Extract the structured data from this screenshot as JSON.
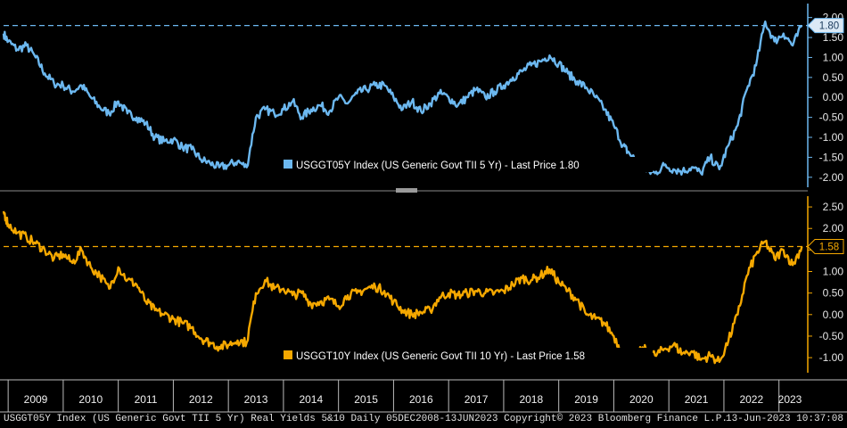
{
  "chart_data": [
    {
      "type": "line",
      "series": [
        {
          "name": "USGGT05Y Index (US Generic Govt TII 5 Yr) - Last Price 1.80",
          "color": "#6cb8f0",
          "x": [
            "2008-12",
            "2009-01",
            "2009-03",
            "2009-05",
            "2009-07",
            "2009-09",
            "2009-11",
            "2010-01",
            "2010-03",
            "2010-05",
            "2010-07",
            "2010-09",
            "2010-11",
            "2011-01",
            "2011-03",
            "2011-05",
            "2011-07",
            "2011-09",
            "2011-11",
            "2012-01",
            "2012-03",
            "2012-05",
            "2012-07",
            "2012-09",
            "2012-11",
            "2013-01",
            "2013-03",
            "2013-05",
            "2013-07",
            "2013-09",
            "2013-11",
            "2014-01",
            "2014-03",
            "2014-05",
            "2014-07",
            "2014-09",
            "2014-11",
            "2015-01",
            "2015-03",
            "2015-05",
            "2015-07",
            "2015-09",
            "2015-11",
            "2016-01",
            "2016-03",
            "2016-05",
            "2016-07",
            "2016-09",
            "2016-11",
            "2017-01",
            "2017-03",
            "2017-05",
            "2017-07",
            "2017-09",
            "2017-11",
            "2018-01",
            "2018-03",
            "2018-05",
            "2018-07",
            "2018-09",
            "2018-11",
            "2019-01",
            "2019-03",
            "2019-05",
            "2019-07",
            "2019-09",
            "2019-11",
            "2020-01",
            "2020-03",
            "2020-04",
            "2020-06",
            "2020-08",
            "2020-10",
            "2020-12",
            "2021-02",
            "2021-04",
            "2021-06",
            "2021-08",
            "2021-10",
            "2021-12",
            "2022-02",
            "2022-04",
            "2022-06",
            "2022-08",
            "2022-10",
            "2022-12",
            "2023-02",
            "2023-04",
            "2023-06"
          ],
          "values": [
            1.6,
            1.4,
            1.2,
            1.3,
            1.0,
            0.6,
            0.35,
            0.3,
            0.15,
            0.3,
            0.0,
            -0.25,
            -0.4,
            -0.1,
            -0.4,
            -0.5,
            -0.65,
            -1.0,
            -1.1,
            -1.05,
            -1.25,
            -1.3,
            -1.55,
            -1.65,
            -1.75,
            -1.7,
            -1.6,
            -1.75,
            -0.5,
            -0.3,
            -0.4,
            -0.3,
            -0.1,
            -0.5,
            -0.3,
            -0.2,
            -0.35,
            0.0,
            -0.15,
            0.1,
            0.2,
            0.3,
            0.3,
            0.0,
            -0.3,
            -0.1,
            -0.35,
            -0.15,
            0.1,
            0.0,
            -0.2,
            0.0,
            0.2,
            0.0,
            0.15,
            0.3,
            0.5,
            0.65,
            0.8,
            0.9,
            1.05,
            0.85,
            0.6,
            0.4,
            0.25,
            0.0,
            -0.3,
            -0.7,
            -1.2,
            -1.35,
            -1.6,
            -1.85,
            -1.9,
            -1.7,
            -1.8,
            -1.85,
            -1.75,
            -1.9,
            -1.5,
            -1.8,
            -1.2,
            -0.7,
            0.2,
            0.8,
            1.9,
            1.4,
            1.6,
            1.3,
            1.8
          ]
        }
      ],
      "reference_line": 1.8,
      "last_value_label": "1.80",
      "ylim": [
        -2.25,
        2.35
      ],
      "yticks": [
        "2.00",
        "1.50",
        "1.00",
        "0.50",
        "0.00",
        "-0.50",
        "-1.00",
        "-1.50",
        "-2.00"
      ],
      "grid": false,
      "legend_position": "bottom-right"
    },
    {
      "type": "line",
      "series": [
        {
          "name": "USGGT10Y Index (US Generic Govt TII 10 Yr) - Last Price 1.58",
          "color": "#f5a800",
          "x": [
            "2008-12",
            "2009-01",
            "2009-03",
            "2009-05",
            "2009-07",
            "2009-09",
            "2009-11",
            "2010-01",
            "2010-03",
            "2010-05",
            "2010-07",
            "2010-09",
            "2010-11",
            "2011-01",
            "2011-03",
            "2011-05",
            "2011-07",
            "2011-09",
            "2011-11",
            "2012-01",
            "2012-03",
            "2012-05",
            "2012-07",
            "2012-09",
            "2012-11",
            "2013-01",
            "2013-03",
            "2013-05",
            "2013-07",
            "2013-09",
            "2013-11",
            "2014-01",
            "2014-03",
            "2014-05",
            "2014-07",
            "2014-09",
            "2014-11",
            "2015-01",
            "2015-03",
            "2015-05",
            "2015-07",
            "2015-09",
            "2015-11",
            "2016-01",
            "2016-03",
            "2016-05",
            "2016-07",
            "2016-09",
            "2016-11",
            "2017-01",
            "2017-03",
            "2017-05",
            "2017-07",
            "2017-09",
            "2017-11",
            "2018-01",
            "2018-03",
            "2018-05",
            "2018-07",
            "2018-09",
            "2018-11",
            "2019-01",
            "2019-03",
            "2019-05",
            "2019-07",
            "2019-09",
            "2019-11",
            "2020-01",
            "2020-03",
            "2020-04",
            "2020-06",
            "2020-08",
            "2020-10",
            "2020-12",
            "2021-02",
            "2021-04",
            "2021-06",
            "2021-08",
            "2021-10",
            "2021-12",
            "2022-02",
            "2022-04",
            "2022-06",
            "2022-08",
            "2022-10",
            "2022-12",
            "2023-02",
            "2023-04",
            "2023-06"
          ],
          "values": [
            2.4,
            2.1,
            1.9,
            1.8,
            1.65,
            1.5,
            1.3,
            1.4,
            1.2,
            1.5,
            1.1,
            0.9,
            0.6,
            1.1,
            0.8,
            0.7,
            0.3,
            0.1,
            0.0,
            -0.1,
            -0.2,
            -0.3,
            -0.55,
            -0.65,
            -0.75,
            -0.7,
            -0.6,
            -0.65,
            0.5,
            0.8,
            0.6,
            0.6,
            0.45,
            0.5,
            0.25,
            0.3,
            0.35,
            0.2,
            0.45,
            0.5,
            0.6,
            0.65,
            0.55,
            0.3,
            0.1,
            0.0,
            0.05,
            0.1,
            0.4,
            0.5,
            0.45,
            0.5,
            0.55,
            0.5,
            0.5,
            0.55,
            0.7,
            0.85,
            0.8,
            0.9,
            1.05,
            0.75,
            0.55,
            0.35,
            0.0,
            -0.1,
            -0.2,
            -0.5,
            -0.9,
            -1.0,
            -0.9,
            -0.8,
            -0.95,
            -0.8,
            -0.7,
            -0.9,
            -0.85,
            -1.05,
            -0.95,
            -1.1,
            -0.6,
            0.0,
            0.9,
            1.4,
            1.7,
            1.3,
            1.5,
            1.15,
            1.58
          ]
        }
      ],
      "reference_line": 1.58,
      "last_value_label": "1.58",
      "ylim": [
        -1.35,
        2.75
      ],
      "yticks": [
        "2.50",
        "2.00",
        "1.50",
        "1.00",
        "0.50",
        "0.00",
        "-0.50",
        "-1.00"
      ],
      "grid": false,
      "legend_position": "bottom-right"
    }
  ],
  "x_axis": {
    "years": [
      "2009",
      "2010",
      "2011",
      "2012",
      "2013",
      "2014",
      "2015",
      "2016",
      "2017",
      "2018",
      "2019",
      "2020",
      "2021",
      "2022",
      "2023"
    ]
  },
  "footer": {
    "left": "USGGT05Y Index (US Generic Govt TII 5 Yr) Real Yields 5&10  Daily 05DEC2008-13JUN2023  Copyright© 2023 Bloomberg Finance L.P.",
    "right": "13-Jun-2023 10:37:08"
  },
  "colors": {
    "background": "#000000",
    "panel_separator": "#8a8a8a",
    "series1": "#6cb8f0",
    "series2": "#f5a800"
  }
}
